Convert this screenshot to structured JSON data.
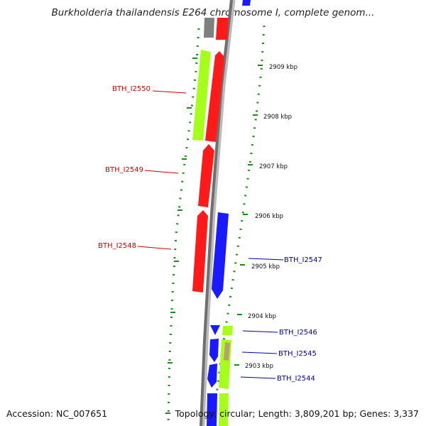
{
  "title": "Burkholderia thailandensis E264 chromosome I, complete genom...",
  "accession": "Accession: NC_007651",
  "topology": "Topology: circular; Length: 3,809,201 bp; Genes: 3,337",
  "colors": {
    "red": "#ff1a1a",
    "blue": "#1a1aff",
    "green": "#a6ff1a",
    "gray": "#7f7f7f",
    "tan": "#b8a070",
    "tick_green": "#1a8a1a"
  },
  "ticks": [
    "2909 kbp",
    "2908 kbp",
    "2907 kbp",
    "2906 kbp",
    "2905 kbp",
    "2904 kbp",
    "2903 kbp"
  ],
  "genes_left": [
    "BTH_I2550",
    "BTH_I2549",
    "BTH_I2548"
  ],
  "genes_right": [
    "BTH_I2547",
    "BTH_I2546",
    "BTH_I2545",
    "BTH_I2544"
  ]
}
